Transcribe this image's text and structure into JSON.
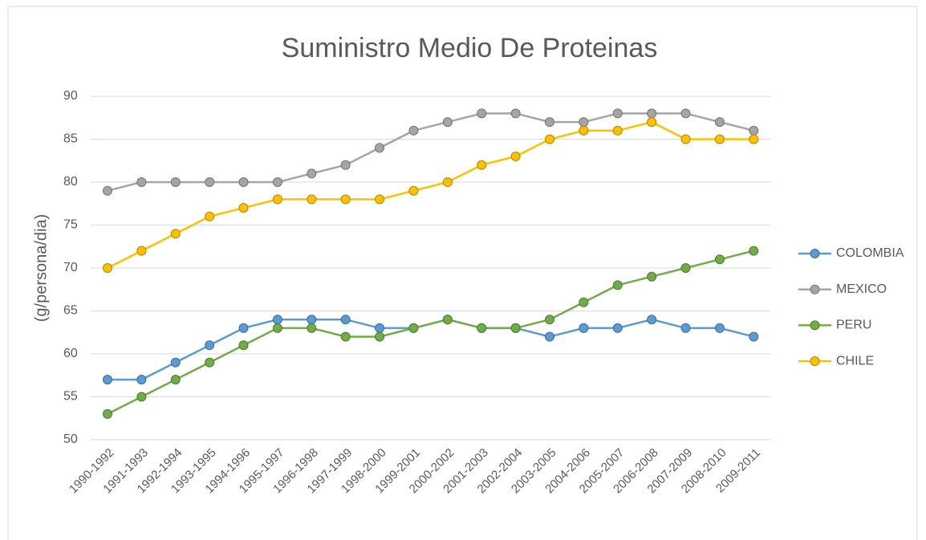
{
  "chart_data": {
    "type": "line",
    "title": "Suministro Medio De Proteinas",
    "y_label": "(g/persona/dia)",
    "categories": [
      "1990-1992",
      "1991-1993",
      "1992-1994",
      "1993-1995",
      "1994-1996",
      "1995-1997",
      "1996-1998",
      "1997-1999",
      "1998-2000",
      "1999-2001",
      "2000-2002",
      "2001-2003",
      "2002-2004",
      "2003-2005",
      "2004-2006",
      "2005-2007",
      "2006-2008",
      "2007-2009",
      "2008-2010",
      "2009-2011"
    ],
    "series": [
      {
        "name": "COLOMBIA",
        "color": "#5b9bd5",
        "values": [
          57,
          57,
          59,
          61,
          63,
          64,
          64,
          64,
          63,
          63,
          64,
          63,
          63,
          62,
          63,
          63,
          64,
          63,
          63,
          62
        ]
      },
      {
        "name": "MEXICO",
        "color": "#a5a5a5",
        "values": [
          79,
          80,
          80,
          80,
          80,
          80,
          81,
          82,
          84,
          86,
          87,
          88,
          88,
          87,
          87,
          88,
          88,
          88,
          87,
          86
        ]
      },
      {
        "name": "PERU",
        "color": "#70ad47",
        "values": [
          53,
          55,
          57,
          59,
          61,
          63,
          63,
          62,
          62,
          63,
          64,
          63,
          63,
          64,
          66,
          68,
          69,
          70,
          71,
          72
        ]
      },
      {
        "name": "CHILE",
        "color": "#ffc000",
        "values": [
          70,
          72,
          74,
          76,
          77,
          78,
          78,
          78,
          78,
          79,
          80,
          82,
          83,
          85,
          86,
          86,
          87,
          85,
          85,
          85
        ]
      }
    ],
    "ylim": [
      50,
      90
    ],
    "yticks": [
      50,
      55,
      60,
      65,
      70,
      75,
      80,
      85,
      90
    ],
    "grid": true,
    "legend": "right"
  }
}
